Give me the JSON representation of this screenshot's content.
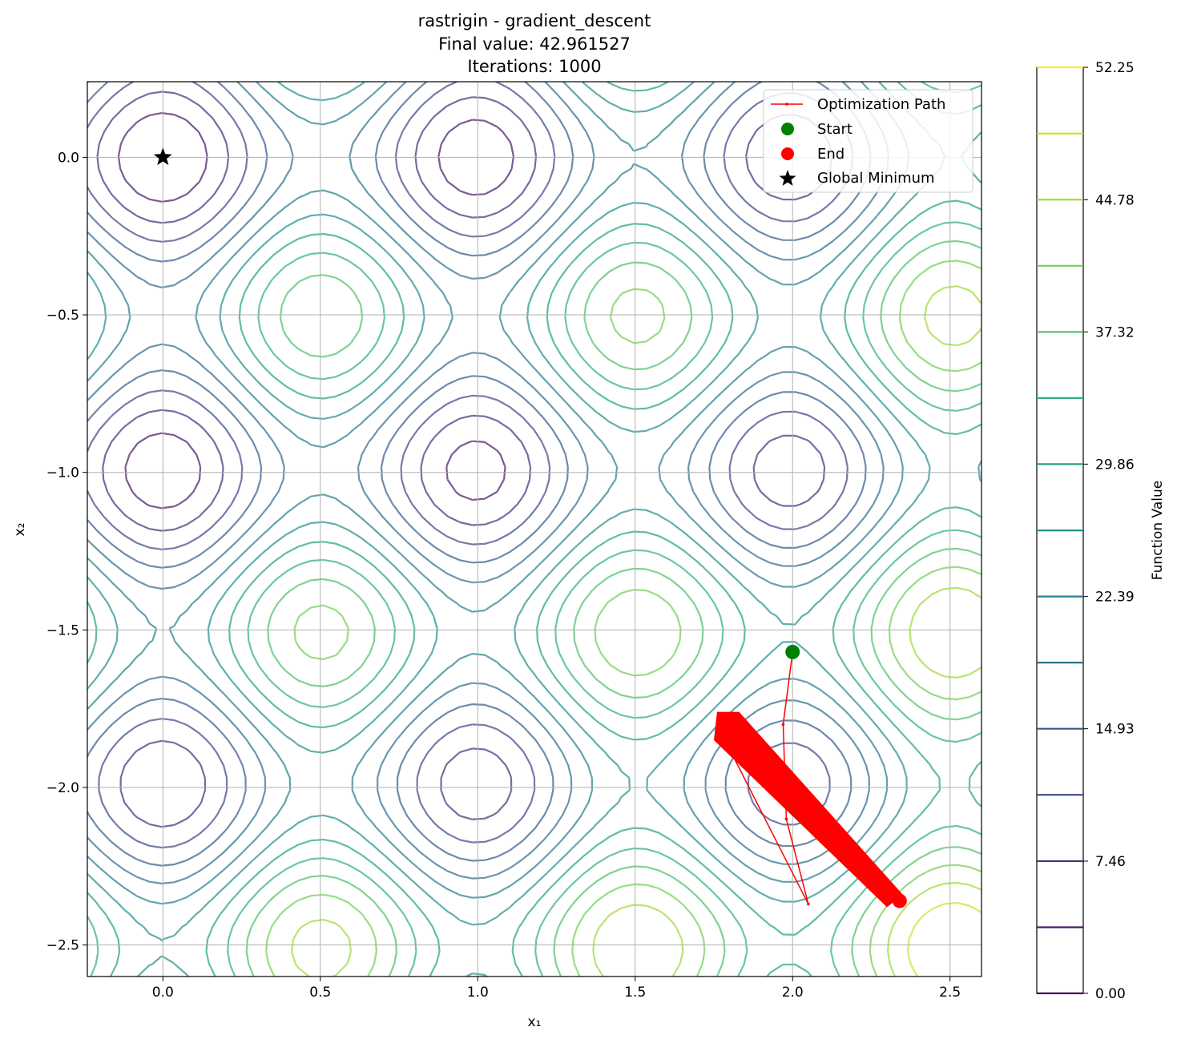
{
  "chart_data": {
    "type": "contour",
    "title_lines": [
      "rastrigin - gradient_descent",
      "Final value: 42.961527",
      "Iterations: 1000"
    ],
    "xlabel": "x₁",
    "ylabel": "x₂",
    "xlim": [
      -0.24,
      2.6
    ],
    "ylim": [
      -2.6,
      0.24
    ],
    "xticks": [
      0.0,
      0.5,
      1.0,
      1.5,
      2.0,
      2.5
    ],
    "yticks": [
      0.0,
      -0.5,
      -1.0,
      -1.5,
      -2.0,
      -2.5
    ],
    "xtick_labels": [
      "0.0",
      "0.5",
      "1.0",
      "1.5",
      "2.0",
      "2.5"
    ],
    "ytick_labels": [
      "0.0",
      "−0.5",
      "−1.0",
      "−1.5",
      "−2.0",
      "−2.5"
    ],
    "grid": true,
    "function": "rastrigin",
    "contour_levels": [
      0.0,
      3.73,
      7.46,
      11.2,
      14.93,
      18.66,
      22.39,
      26.12,
      29.86,
      33.59,
      37.32,
      41.05,
      44.78,
      48.51,
      52.25
    ],
    "colormap": "viridis",
    "colorbar": {
      "label": "Function Value",
      "ticks": [
        0.0,
        7.46,
        14.93,
        22.39,
        29.86,
        37.32,
        44.78,
        52.25
      ],
      "tick_labels": [
        "0.00",
        "7.46",
        "14.93",
        "22.39",
        "29.86",
        "37.32",
        "44.78",
        "52.25"
      ]
    },
    "optimization_path": {
      "name": "Optimization Path",
      "color": "#ff0000",
      "x": [
        2.0,
        1.97,
        1.98,
        2.05,
        1.76,
        2.35,
        1.78,
        2.33,
        1.8,
        2.34,
        1.77,
        2.35
      ],
      "y": [
        -1.57,
        -1.8,
        -2.1,
        -2.37,
        -1.8,
        -2.36,
        -1.78,
        -2.35,
        -1.79,
        -2.37,
        -1.82,
        -2.36
      ]
    },
    "oscillation_band": {
      "upper": [
        [
          1.76,
          -1.76
        ],
        [
          1.83,
          -1.76
        ],
        [
          2.35,
          -2.34
        ]
      ],
      "lower": [
        [
          1.75,
          -1.85
        ],
        [
          2.3,
          -2.38
        ]
      ]
    },
    "start": {
      "name": "Start",
      "x": 2.0,
      "y": -1.57,
      "color": "#008000"
    },
    "end": {
      "name": "End",
      "x": 2.34,
      "y": -2.36,
      "color": "#ff0000"
    },
    "global_minimum": {
      "name": "Global Minimum",
      "x": 0.0,
      "y": 0.0,
      "color": "#000000"
    },
    "legend": {
      "placement": "upper-right",
      "entries": [
        "Optimization Path",
        "Start",
        "End",
        "Global Minimum"
      ]
    }
  }
}
